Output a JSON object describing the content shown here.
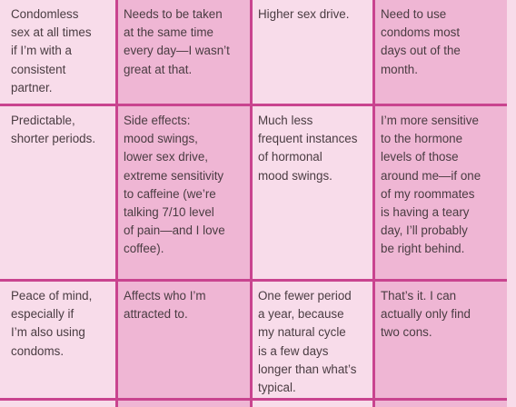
{
  "table": {
    "rows": [
      [
        "Condomless\nsex at all times\nif I’m with a\nconsistent\npartner.",
        "Needs to be taken\nat the same time\nevery day—I wasn’t\ngreat at that.",
        "Higher sex drive.",
        "Need to use\ncondoms most\ndays out of the\nmonth."
      ],
      [
        "Predictable,\nshorter periods.",
        "Side effects:\nmood swings,\nlower sex drive,\nextreme sensitivity\nto caffeine (we’re\ntalking 7/10 level\nof pain—and I love\ncoffee).",
        "Much less\nfrequent instances\nof hormonal\nmood swings.",
        "I’m more sensitive\nto the hormone\nlevels of those\naround me—if one\nof my roommates\nis having a teary\nday, I’ll probably\nbe right behind."
      ],
      [
        "Peace of mind,\nespecially if\nI’m also using\ncondoms.",
        "Affects who I’m\nattracted to.",
        "One fewer period\na year, because\nmy natural cycle\nis a few days\nlonger than what’s\ntypical.",
        "That’s it. I can\nactually only find\ntwo cons."
      ]
    ]
  },
  "colors": {
    "border": "#c9448f",
    "light_cell": "#f8dcea",
    "dark_cell": "#efb6d4",
    "text": "#4a3c42"
  }
}
